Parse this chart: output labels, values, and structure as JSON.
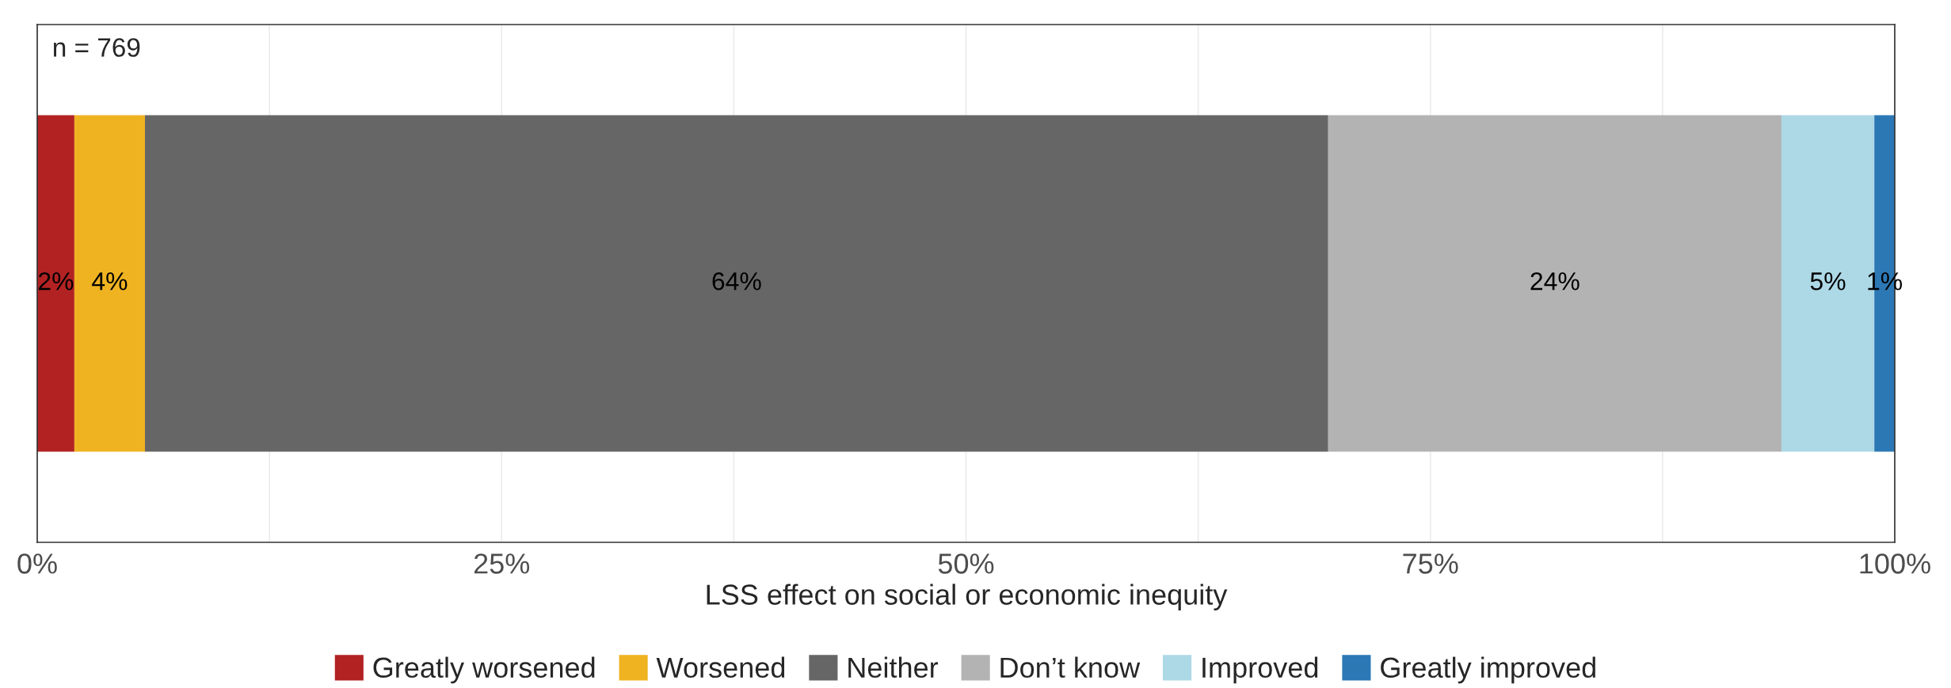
{
  "chart_data": {
    "type": "bar",
    "orientation": "horizontal",
    "stacked": true,
    "xlabel": "LSS effect on social or economic inequity",
    "categories": [
      null
    ],
    "series": [
      {
        "name": "Greatly worsened",
        "color": "#b22222",
        "values": [
          2.0
        ],
        "value_labels": [
          "2%"
        ]
      },
      {
        "name": "Worsened",
        "color": "#efb322",
        "values": [
          3.8
        ],
        "value_labels": [
          "4%"
        ]
      },
      {
        "name": "Neither",
        "color": "#666666",
        "values": [
          63.7
        ],
        "value_labels": [
          "64%"
        ]
      },
      {
        "name": "Don’t know",
        "color": "#b3b3b3",
        "values": [
          24.4
        ],
        "value_labels": [
          "24%"
        ]
      },
      {
        "name": "Improved",
        "color": "#add8e6",
        "values": [
          5.0
        ],
        "value_labels": [
          "5%"
        ]
      },
      {
        "name": "Greatly improved",
        "color": "#2c78b5",
        "values": [
          1.1
        ],
        "value_labels": [
          "1%"
        ]
      }
    ],
    "xlim": [
      0,
      100
    ],
    "xticks": [
      {
        "value": 0,
        "label": "0%"
      },
      {
        "value": 12.5,
        "label": null
      },
      {
        "value": 25,
        "label": "25%"
      },
      {
        "value": 37.5,
        "label": null
      },
      {
        "value": 50,
        "label": "50%"
      },
      {
        "value": 62.5,
        "label": null
      },
      {
        "value": 75,
        "label": "75%"
      },
      {
        "value": 87.5,
        "label": null
      },
      {
        "value": 100,
        "label": "100%"
      }
    ],
    "grid": "x",
    "legend": "bottom",
    "annotations": [
      "n = 769"
    ]
  }
}
